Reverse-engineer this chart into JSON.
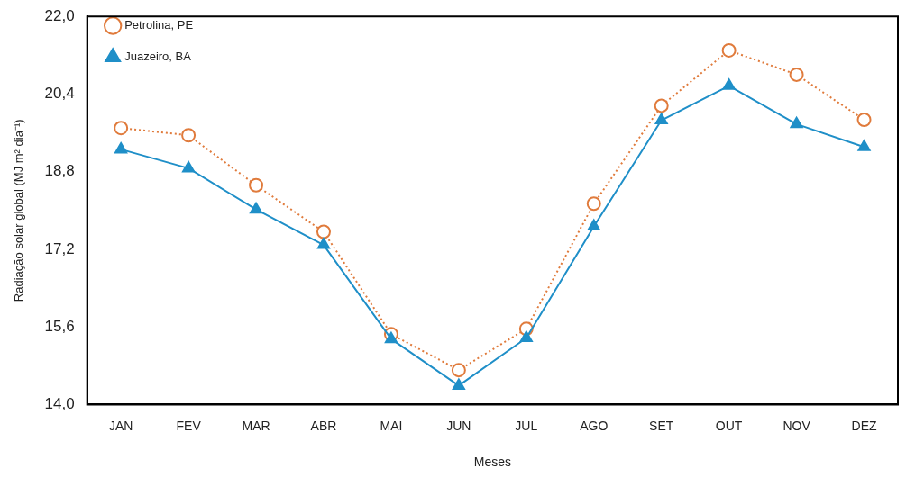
{
  "chart_data": {
    "type": "line",
    "xlabel": "Meses",
    "ylabel": "Radiação solar global (MJ m² dia⁻¹)",
    "categories": [
      "JAN",
      "FEV",
      "MAR",
      "ABR",
      "MAI",
      "JUN",
      "JUL",
      "AGO",
      "SET",
      "OUT",
      "NOV",
      "DEZ"
    ],
    "series": [
      {
        "name": "Petrolina, PE",
        "color": "#e07b3c",
        "marker": "circle",
        "line_style": "dotted",
        "values": [
          19.7,
          19.55,
          18.52,
          17.56,
          15.45,
          14.71,
          15.56,
          18.14,
          20.16,
          21.3,
          20.8,
          19.87
        ]
      },
      {
        "name": "Juazeiro, BA",
        "color": "#1f8fc8",
        "marker": "triangle",
        "line_style": "solid",
        "values": [
          19.26,
          18.87,
          18.02,
          17.29,
          15.35,
          14.39,
          15.37,
          17.67,
          19.86,
          20.57,
          19.78,
          19.31
        ]
      }
    ],
    "ylim": [
      14,
      22
    ],
    "yticks": [
      {
        "value": 14,
        "label": "14,0"
      },
      {
        "value": 15.6,
        "label": "15,6"
      },
      {
        "value": 17.2,
        "label": "17,2"
      },
      {
        "value": 18.8,
        "label": "18,8"
      },
      {
        "value": 20.4,
        "label": "20,4"
      },
      {
        "value": 22,
        "label": "22,0"
      }
    ],
    "grid": false,
    "legend": "top left"
  }
}
